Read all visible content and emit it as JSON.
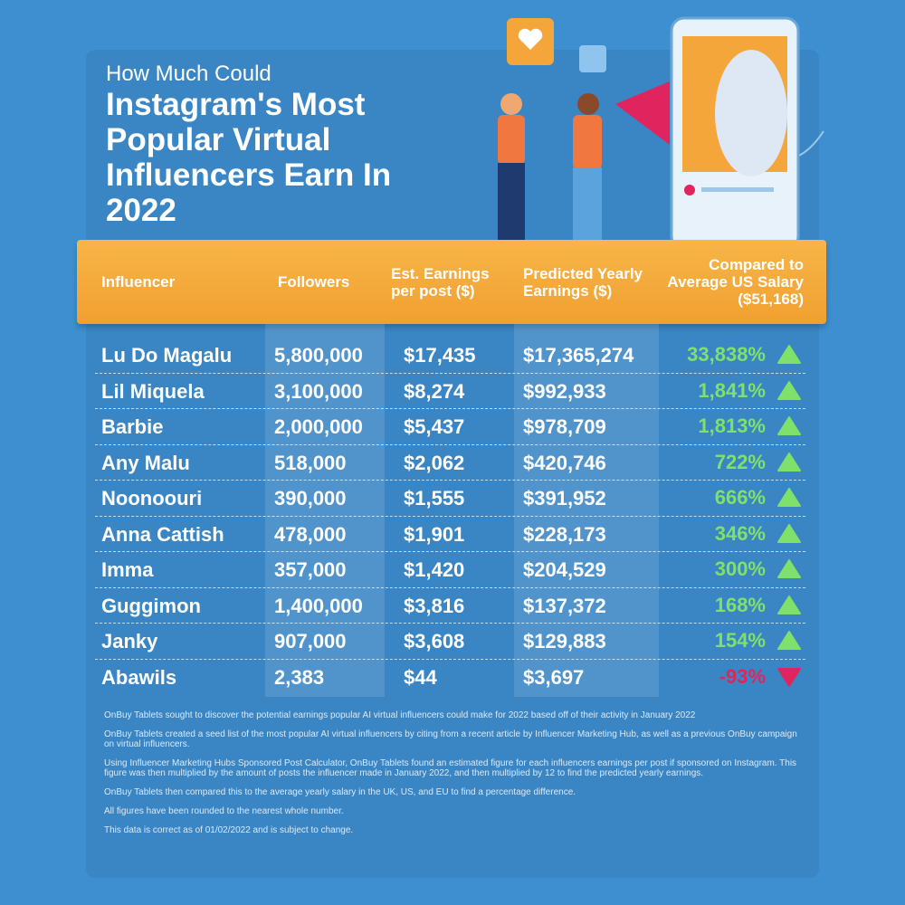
{
  "header": {
    "kicker": "How Much Could",
    "title": "Instagram's Most Popular Virtual Influencers Earn In 2022"
  },
  "table": {
    "columns": [
      "Influencer",
      "Followers",
      "Est. Earnings per post ($)",
      "Predicted Yearly Earnings ($)",
      "Compared to Average US Salary ($51,168)"
    ],
    "rows": [
      [
        "Lu Do Magalu",
        "5,800,000",
        "$17,435",
        "$17,365,274",
        "33,838%"
      ],
      [
        "Lil Miquela",
        "3,100,000",
        "$8,274",
        "$992,933",
        "1,841%"
      ],
      [
        "Barbie",
        "2,000,000",
        "$5,437",
        "$978,709",
        "1,813%"
      ],
      [
        "Any Malu",
        "518,000",
        "$2,062",
        "$420,746",
        "722%"
      ],
      [
        "Noonoouri",
        "390,000",
        "$1,555",
        "$391,952",
        "666%"
      ],
      [
        "Anna Cattish",
        "478,000",
        "$1,901",
        "$228,173",
        "346%"
      ],
      [
        "Imma",
        "357,000",
        "$1,420",
        "$204,529",
        "300%"
      ],
      [
        "Guggimon",
        "1,400,000",
        "$3,816",
        "$137,372",
        "168%"
      ],
      [
        "Janky",
        "907,000",
        "$3,608",
        "$129,883",
        "154%"
      ],
      [
        "Abawils",
        "2,383",
        "$44",
        "$3,697",
        "-93%"
      ]
    ],
    "up_color": "#7fe06a",
    "down_color": "#e0245e"
  },
  "notes": [
    "OnBuy Tablets sought to discover the potential earnings popular AI virtual influencers could make for 2022 based off of their activity in January 2022",
    "OnBuy Tablets created a seed list of the most popular AI virtual influencers by citing from a recent article by Influencer Marketing Hub, as well as a previous OnBuy campaign on virtual influencers.",
    "Using Influencer Marketing Hubs Sponsored Post Calculator, OnBuy Tablets found an estimated figure for each influencers earnings per post if sponsored on Instagram. This figure was then multiplied by the amount of posts the influencer made in January 2022, and then multiplied by 12 to find the predicted yearly earnings.",
    "OnBuy Tablets then compared this to the average yearly salary in the UK, US, and EU to find a percentage difference.",
    "All figures have been rounded to the nearest whole number.",
    "This data is correct as of 01/02/2022 and is subject to change."
  ]
}
